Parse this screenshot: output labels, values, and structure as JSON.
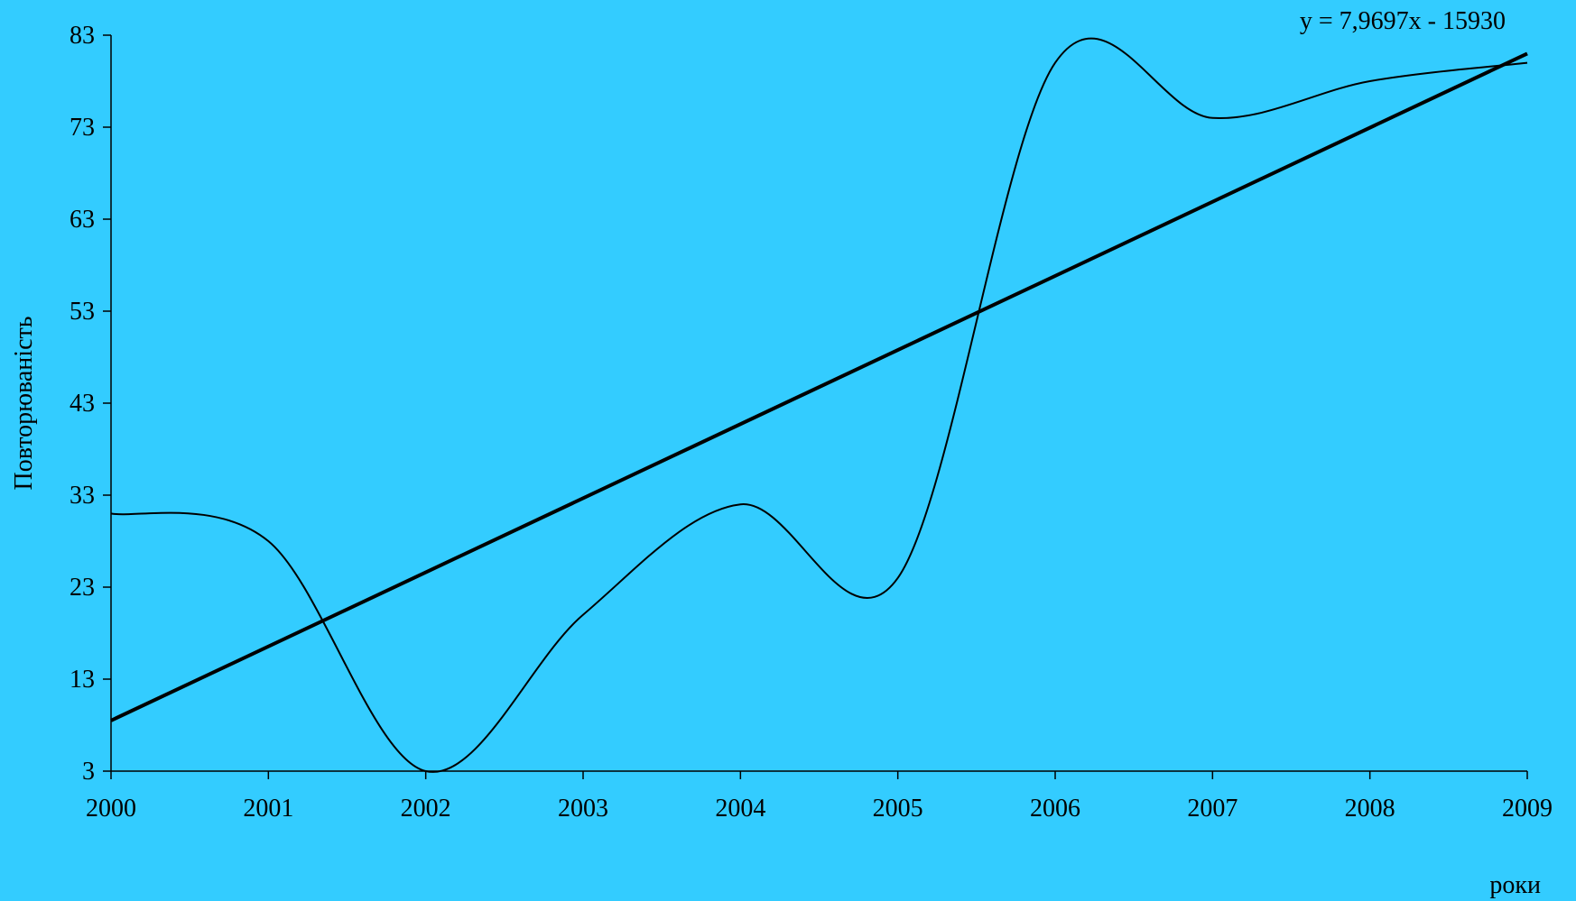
{
  "chart_data": {
    "type": "line",
    "x": [
      "2000",
      "2001",
      "2002",
      "2003",
      "2004",
      "2005",
      "2006",
      "2007",
      "2008",
      "2009"
    ],
    "series": [
      {
        "values": [
          31,
          28,
          3,
          20,
          32,
          24,
          80,
          74,
          78,
          80
        ],
        "smooth": true,
        "color": "#000000"
      }
    ],
    "trendline": {
      "type": "linear",
      "equation": "y = 7,9697x - 15930",
      "start": 8.5,
      "end": 81,
      "color": "#000000"
    },
    "xlabel": "роки",
    "ylabel": "Повторюваність",
    "ylim": [
      3,
      83
    ],
    "yticks": [
      "3",
      "13",
      "23",
      "33",
      "43",
      "53",
      "63",
      "73",
      "83"
    ],
    "grid": false,
    "background": "#33CCFF"
  }
}
